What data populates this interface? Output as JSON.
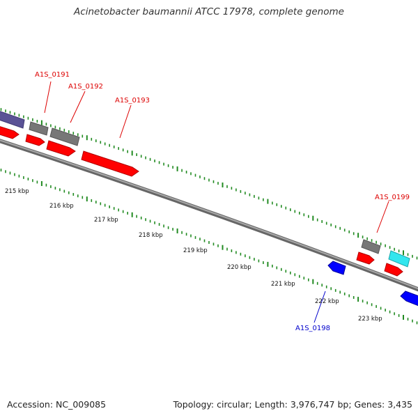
{
  "title": "Acinetobacter baumannii ATCC 17978, complete genome",
  "footer": {
    "accession": "Accession: NC_009085",
    "summary": "Topology: circular; Length: 3,976,747 bp; Genes: 3,435"
  },
  "colors": {
    "forward_cds": "#ff0000",
    "reverse_cds": "#0000ff",
    "gene_gray": "#777777",
    "gene_cyan": "#33e6ee",
    "gene_purple": "#5a5296",
    "backbone": "#888888",
    "gc_ticks": "#228b22",
    "forward_label": "#dd0000",
    "reverse_label": "#0000cc"
  },
  "scale": {
    "tick_labels": [
      "215 kbp",
      "216 kbp",
      "217 kbp",
      "218 kbp",
      "219 kbp",
      "220 kbp",
      "221 kbp",
      "222 kbp",
      "223 kbp"
    ]
  },
  "gene_labels": [
    {
      "text": "A1S_0191",
      "strand": "forward"
    },
    {
      "text": "A1S_0192",
      "strand": "forward"
    },
    {
      "text": "A1S_0193",
      "strand": "forward"
    },
    {
      "text": "A1S_0199",
      "strand": "forward"
    },
    {
      "text": "A1S_0198",
      "strand": "reverse"
    }
  ]
}
